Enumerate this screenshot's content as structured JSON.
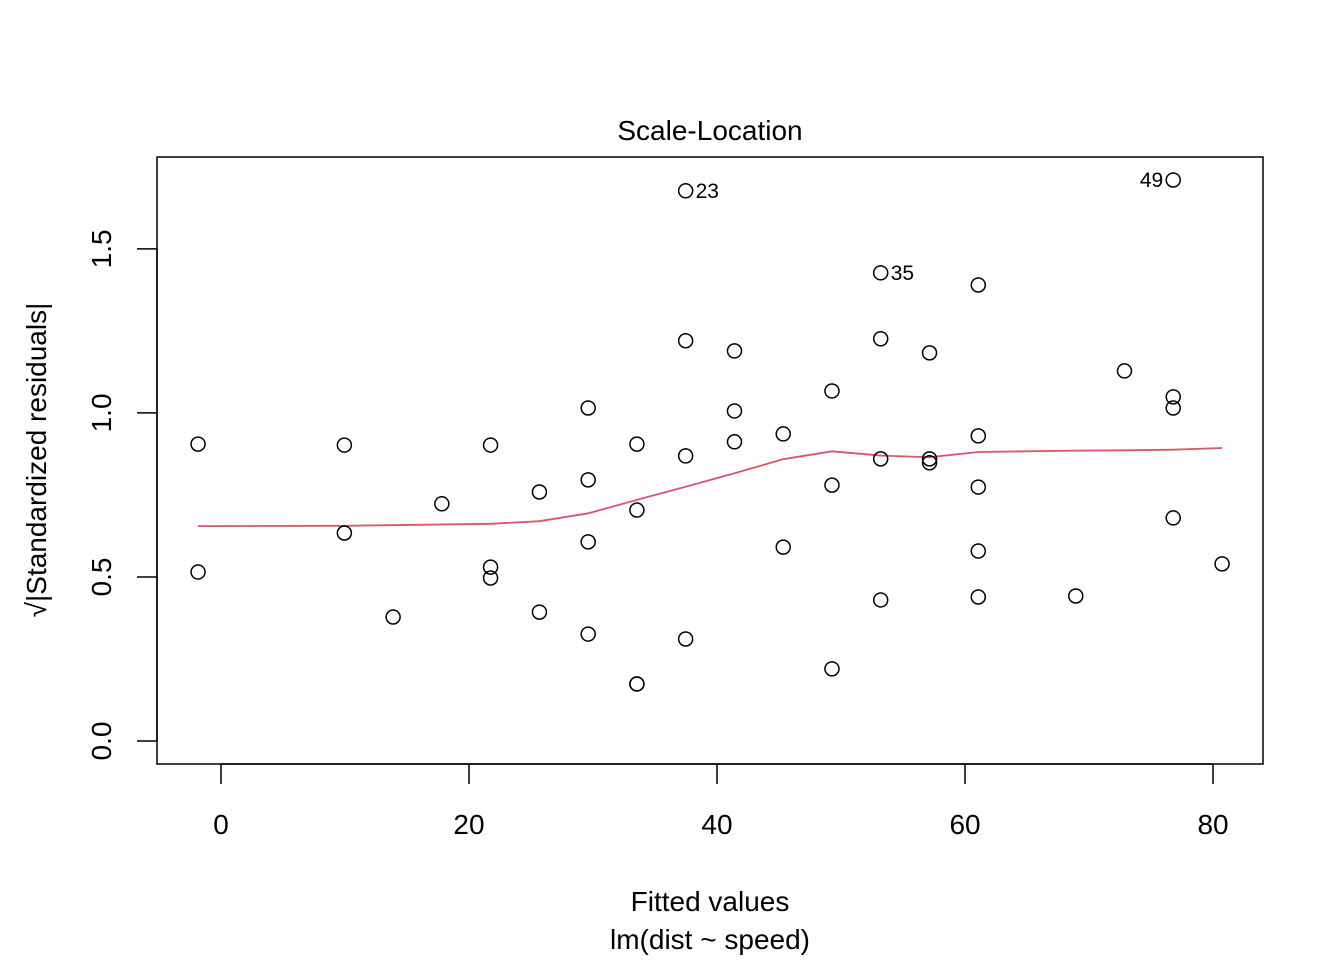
{
  "chart_data": {
    "type": "scatter",
    "title": "Scale-Location",
    "xlabel": "Fitted values",
    "subtitle": "lm(dist ~ speed)",
    "ylabel": "√|Standardized residuals|",
    "xlim": [
      -5.16,
      84.03
    ],
    "ylim": [
      -0.07,
      1.78
    ],
    "xticks": [
      0,
      20,
      40,
      60,
      80
    ],
    "yticks": [
      0.0,
      0.5,
      1.0,
      1.5
    ],
    "xtick_labels": [
      "0",
      "20",
      "40",
      "60",
      "80"
    ],
    "ytick_labels": [
      "0.0",
      "0.5",
      "1.0",
      "1.5"
    ],
    "grid": false,
    "point_color": "#000000",
    "smooth_color": "#DF536B",
    "points": [
      {
        "x": -1.85,
        "y": 0.905
      },
      {
        "x": -1.85,
        "y": 0.515
      },
      {
        "x": 9.95,
        "y": 0.902
      },
      {
        "x": 9.95,
        "y": 0.634
      },
      {
        "x": 13.88,
        "y": 0.378
      },
      {
        "x": 17.81,
        "y": 0.723
      },
      {
        "x": 21.74,
        "y": 0.902
      },
      {
        "x": 21.74,
        "y": 0.53
      },
      {
        "x": 21.74,
        "y": 0.497
      },
      {
        "x": 25.68,
        "y": 0.759
      },
      {
        "x": 25.68,
        "y": 0.393
      },
      {
        "x": 29.61,
        "y": 1.015
      },
      {
        "x": 29.61,
        "y": 0.796
      },
      {
        "x": 29.61,
        "y": 0.607
      },
      {
        "x": 29.61,
        "y": 0.326
      },
      {
        "x": 33.54,
        "y": 0.905
      },
      {
        "x": 33.54,
        "y": 0.704
      },
      {
        "x": 33.54,
        "y": 0.174
      },
      {
        "x": 33.54,
        "y": 0.174
      },
      {
        "x": 37.47,
        "y": 1.677,
        "label": "23",
        "label_side": "right"
      },
      {
        "x": 37.47,
        "y": 1.22
      },
      {
        "x": 37.47,
        "y": 0.869
      },
      {
        "x": 37.47,
        "y": 0.311
      },
      {
        "x": 41.41,
        "y": 1.189
      },
      {
        "x": 41.41,
        "y": 1.006
      },
      {
        "x": 41.41,
        "y": 0.912
      },
      {
        "x": 45.34,
        "y": 0.936
      },
      {
        "x": 45.34,
        "y": 0.591
      },
      {
        "x": 49.27,
        "y": 1.067
      },
      {
        "x": 49.27,
        "y": 0.78
      },
      {
        "x": 49.27,
        "y": 0.22
      },
      {
        "x": 53.2,
        "y": 1.427,
        "label": "35",
        "label_side": "right"
      },
      {
        "x": 53.2,
        "y": 1.226
      },
      {
        "x": 53.2,
        "y": 0.86
      },
      {
        "x": 53.2,
        "y": 0.43
      },
      {
        "x": 57.14,
        "y": 1.183
      },
      {
        "x": 57.14,
        "y": 0.86
      },
      {
        "x": 57.14,
        "y": 0.848
      },
      {
        "x": 61.07,
        "y": 1.39
      },
      {
        "x": 61.07,
        "y": 0.93
      },
      {
        "x": 61.07,
        "y": 0.774
      },
      {
        "x": 61.07,
        "y": 0.579
      },
      {
        "x": 61.07,
        "y": 0.439
      },
      {
        "x": 68.93,
        "y": 0.442
      },
      {
        "x": 72.86,
        "y": 1.128
      },
      {
        "x": 76.79,
        "y": 1.71,
        "label": "49",
        "label_side": "left"
      },
      {
        "x": 76.79,
        "y": 1.049
      },
      {
        "x": 76.79,
        "y": 1.015
      },
      {
        "x": 76.79,
        "y": 0.68
      },
      {
        "x": 80.73,
        "y": 0.54
      }
    ],
    "smooth_line": [
      {
        "x": -1.85,
        "y": 0.655
      },
      {
        "x": 9.95,
        "y": 0.656
      },
      {
        "x": 21.74,
        "y": 0.662
      },
      {
        "x": 25.68,
        "y": 0.67
      },
      {
        "x": 29.61,
        "y": 0.694
      },
      {
        "x": 33.54,
        "y": 0.735
      },
      {
        "x": 37.47,
        "y": 0.775
      },
      {
        "x": 41.41,
        "y": 0.816
      },
      {
        "x": 45.34,
        "y": 0.859
      },
      {
        "x": 49.27,
        "y": 0.883
      },
      {
        "x": 53.2,
        "y": 0.87
      },
      {
        "x": 57.14,
        "y": 0.865
      },
      {
        "x": 61.07,
        "y": 0.881
      },
      {
        "x": 68.93,
        "y": 0.885
      },
      {
        "x": 72.86,
        "y": 0.886
      },
      {
        "x": 76.79,
        "y": 0.888
      },
      {
        "x": 80.73,
        "y": 0.893
      }
    ]
  }
}
